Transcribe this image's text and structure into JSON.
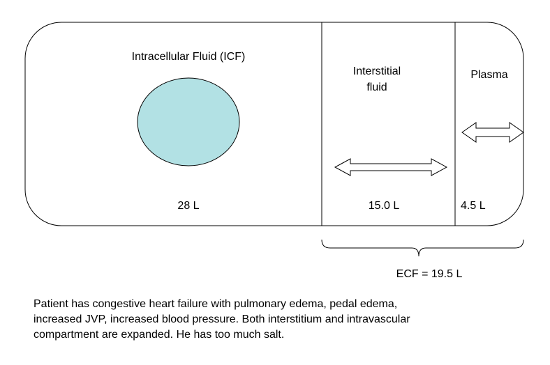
{
  "compartments": {
    "icf": {
      "label": "Intracellular Fluid (ICF)",
      "volume": "28 L"
    },
    "interstitial": {
      "label_line1": "Interstitial",
      "label_line2": "fluid",
      "volume": "15.0 L"
    },
    "plasma": {
      "label": "Plasma",
      "volume": "4.5 L"
    }
  },
  "ecf": {
    "label": "ECF = 19.5 L"
  },
  "caption": {
    "line1": "Patient has congestive heart failure with pulmonary edema, pedal edema,",
    "line2": "increased JVP, increased blood pressure.  Both interstitium and intravascular",
    "line3": "compartment are expanded.  He has too much salt."
  },
  "colors": {
    "cell_fill": "#b2e1e4",
    "stroke": "#000000"
  }
}
